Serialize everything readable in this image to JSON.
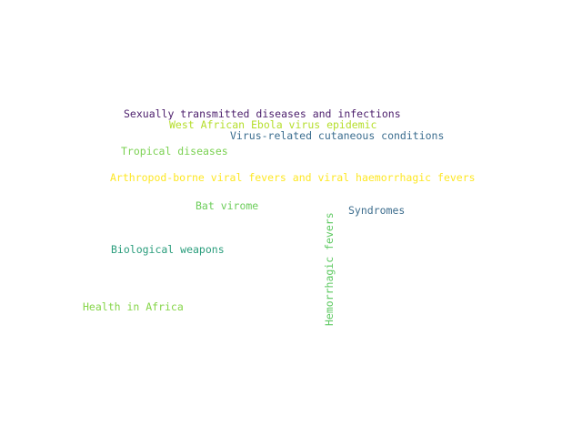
{
  "words": [
    {
      "text": "Sexually transmitted diseases and infections",
      "color": "#4b1d6b"
    },
    {
      "text": "West African Ebola virus epidemic",
      "color": "#b5de2b"
    },
    {
      "text": "Virus-related cutaneous conditions",
      "color": "#3b6d8f"
    },
    {
      "text": "Tropical diseases",
      "color": "#7ad151"
    },
    {
      "text": "Arthropod-borne viral fevers and viral haemorrhagic fevers",
      "color": "#fde725"
    },
    {
      "text": "Bat virome",
      "color": "#6ccd5a"
    },
    {
      "text": "Syndromes",
      "color": "#3e6e8e"
    },
    {
      "text": "Biological weapons",
      "color": "#2a9d7c"
    },
    {
      "text": "Hemorrhagic fevers",
      "color": "#5ec962"
    },
    {
      "text": "Health in Africa",
      "color": "#86d549"
    }
  ]
}
